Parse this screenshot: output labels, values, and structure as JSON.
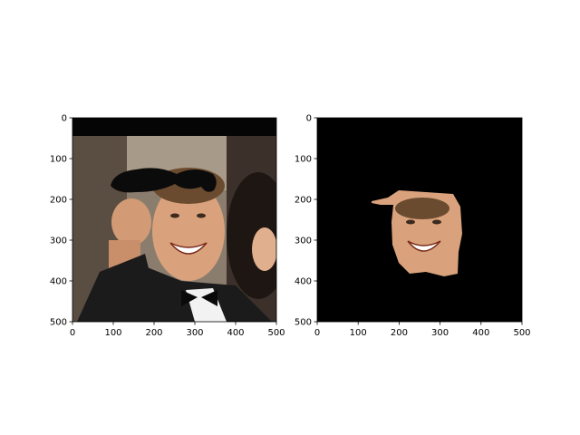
{
  "figure": {
    "background": "#ffffff",
    "axis_color": "#000000"
  },
  "chart_data": [
    {
      "type": "image",
      "title": "",
      "xlabel": "",
      "ylabel": "",
      "xlim": [
        0,
        500
      ],
      "ylim": [
        500,
        0
      ],
      "xticks": [
        0,
        100,
        200,
        300,
        400,
        500
      ],
      "yticks": [
        0,
        100,
        200,
        300,
        400,
        500
      ],
      "grid": false,
      "content": "photo of smiling man in tuxedo raising fist, with drawn black mustache overlay near forehead",
      "colors": {
        "background_band": "#050505",
        "mustache": "#0b0b0b",
        "skin": "#d9a27c",
        "suit": "#1b1b1b",
        "shirt": "#f2f2f2"
      }
    },
    {
      "type": "image",
      "title": "",
      "xlabel": "",
      "ylabel": "",
      "xlim": [
        0,
        500
      ],
      "ylim": [
        500,
        0
      ],
      "xticks": [
        0,
        100,
        200,
        300,
        400,
        500
      ],
      "yticks": [
        0,
        100,
        200,
        300,
        400,
        500
      ],
      "grid": false,
      "content": "segmented face region on black background",
      "colors": {
        "background": "#000000",
        "skin": "#d9a27c"
      }
    }
  ]
}
